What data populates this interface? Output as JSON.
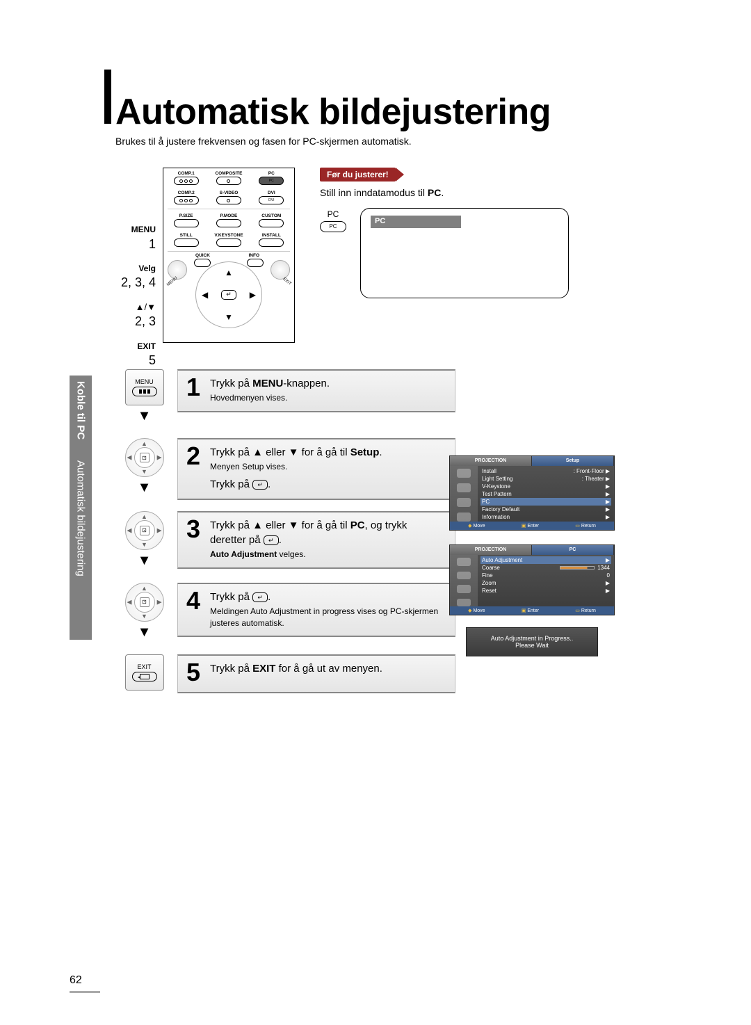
{
  "title": "Automatisk bildejustering",
  "subtitle": "Brukes til å justere frekvensen og fasen for PC-skjermen automatisk.",
  "side_tab": {
    "bold": "Koble til PC",
    "normal": "Automatisk bildejustering"
  },
  "callout": {
    "tag": "Før du justerer!",
    "line1": "Still inn inndatamodus til ",
    "line1_bold": "PC",
    "line1_tail": "."
  },
  "pc_label": "PC",
  "pc_osd_label": "PC",
  "remote_side_labels": {
    "menu": "MENU",
    "menu_n": "1",
    "velg": "Velg",
    "velg_n": "2, 3, 4",
    "arrows": "▲/▼",
    "arrows_n": "2, 3",
    "exit": "EXIT",
    "exit_n": "5"
  },
  "remote_top": {
    "row1": [
      {
        "lbl": "COMP.1",
        "type": "dots3"
      },
      {
        "lbl": "COMPOSITE",
        "type": "dot"
      },
      {
        "lbl": "PC",
        "type": "txt",
        "txt": "PC",
        "sel": true
      }
    ],
    "row2": [
      {
        "lbl": "COMP.2",
        "type": "dots3"
      },
      {
        "lbl": "S-VIDEO",
        "type": "dot"
      },
      {
        "lbl": "DVI",
        "type": "txt",
        "txt": "DVI"
      }
    ],
    "row3": [
      {
        "lbl": "P.SIZE",
        "type": "txt",
        "txt": ""
      },
      {
        "lbl": "P.MODE",
        "type": "txt",
        "txt": ""
      },
      {
        "lbl": "CUSTOM",
        "type": "txt",
        "txt": ""
      }
    ],
    "row4": [
      {
        "lbl": "STILL",
        "type": "txt",
        "txt": ""
      },
      {
        "lbl": "V.KEYSTONE",
        "type": "txt",
        "txt": ""
      },
      {
        "lbl": "INSTALL",
        "type": "txt",
        "txt": ""
      }
    ],
    "quick": "QUICK",
    "info": "INFO",
    "menu_btn": "MENU",
    "exit_btn": "EXIT"
  },
  "steps": [
    {
      "num": "1",
      "icon": "menu",
      "icon_label": "MENU",
      "lines": [
        {
          "t": "Trykk på ",
          "b": "MENU",
          "t2": "-knappen."
        }
      ],
      "small": "Hovedmenyen vises."
    },
    {
      "num": "2",
      "icon": "dpad",
      "lines": [
        {
          "t": "Trykk på ▲ eller ▼ for å gå til ",
          "b": "Setup",
          "t2": "."
        }
      ],
      "small": "Menyen Setup vises.",
      "line2": {
        "t": "Trykk på ",
        "enter": true,
        "t2": "."
      }
    },
    {
      "num": "3",
      "icon": "dpad",
      "lines": [
        {
          "t": "Trykk på ▲ eller ▼ for å gå til ",
          "b": "PC",
          "t2": ", og trykk"
        }
      ],
      "line1b": {
        "t": "deretter på ",
        "enter": true,
        "t2": "."
      },
      "small_b": "Auto Adjustment",
      "small_t": " velges."
    },
    {
      "num": "4",
      "icon": "dpad",
      "lines": [
        {
          "t": "Trykk på ",
          "enter": true,
          "t2": "."
        }
      ],
      "small": "Meldingen Auto Adjustment in progress vises og PC-skjermen justeres automatisk."
    },
    {
      "num": "5",
      "icon": "exit",
      "icon_label": "EXIT",
      "lines": [
        {
          "t": "Trykk på ",
          "b": "EXIT",
          "t2": " for å gå ut av menyen."
        }
      ]
    }
  ],
  "osd1": {
    "tab1": "PROJECTION",
    "tab2": "Setup",
    "rows": [
      {
        "l": "Install",
        "r": ": Front-Floor",
        "a": "▶"
      },
      {
        "l": "Light Setting",
        "r": ": Theater",
        "a": "▶"
      },
      {
        "l": "V-Keystone",
        "r": "",
        "a": "▶"
      },
      {
        "l": "Test Pattern",
        "r": "",
        "a": "▶"
      },
      {
        "l": "PC",
        "r": "",
        "a": "▶",
        "sel": true
      },
      {
        "l": "Factory Default",
        "r": "",
        "a": "▶"
      },
      {
        "l": "Information",
        "r": "",
        "a": "▶"
      }
    ],
    "foot": {
      "move": "Move",
      "enter": "Enter",
      "ret": "Return"
    }
  },
  "osd2": {
    "tab1": "PROJECTION",
    "tab2": "PC",
    "rows": [
      {
        "l": "Auto Adjustment",
        "r": "",
        "a": "▶",
        "sel": true
      },
      {
        "l": "Coarse",
        "r": "1344",
        "bar": true
      },
      {
        "l": "Fine",
        "r": "0"
      },
      {
        "l": "Zoom",
        "r": "",
        "a": "▶"
      },
      {
        "l": "Reset",
        "r": "",
        "a": "▶"
      }
    ],
    "foot": {
      "move": "Move",
      "enter": "Enter",
      "ret": "Return"
    }
  },
  "osd_progress": {
    "l1": "Auto Adjustment in Progress..",
    "l2": "Please Wait"
  },
  "page_number": "62"
}
